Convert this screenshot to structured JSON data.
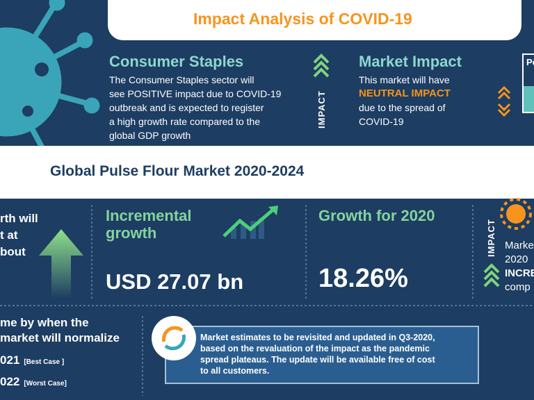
{
  "header": {
    "title": "Impact Analysis of COVID-19"
  },
  "consumer_staples": {
    "title": "Consumer Staples",
    "lines": [
      "The Consumer Staples sector will",
      "see POSITIVE impact due to COVID-19",
      "outbreak and is expected to register",
      "a high growth rate compared to the",
      "global GDP growth"
    ]
  },
  "impact_label": "IMPACT",
  "market_impact": {
    "title": "Market Impact",
    "lines": [
      "This market will have",
      "NEUTRAL IMPACT",
      "due to the spread of",
      "COVID-19"
    ]
  },
  "side_tab": "Pe",
  "market_title": "Global Pulse Flour Market 2020-2024",
  "growth_note": {
    "lines": [
      "rth will",
      "t at",
      "bout"
    ]
  },
  "incremental": {
    "title_lines": [
      "Incremental",
      "growth"
    ],
    "value": "USD 27.07 bn"
  },
  "growth_2020": {
    "title": "Growth for 2020",
    "value": "18.26%"
  },
  "impact_2020": {
    "label": "IMPACT",
    "lines": [
      "Marke",
      "2020",
      "INCRE",
      "comp"
    ]
  },
  "normalize": {
    "lines": [
      "me by when the",
      "market will normalize"
    ],
    "cases": [
      {
        "year": "021",
        "note": "[Best Case ]"
      },
      {
        "year": "022",
        "note": "[Worst Case]"
      }
    ]
  },
  "update_note": {
    "lines": [
      "Market estimates to be revisited and updated in Q3-2020,",
      "based on the revaluation of the impact as the pandemic",
      "spread plateaus. The update will be available free of cost",
      "to all customers."
    ]
  }
}
